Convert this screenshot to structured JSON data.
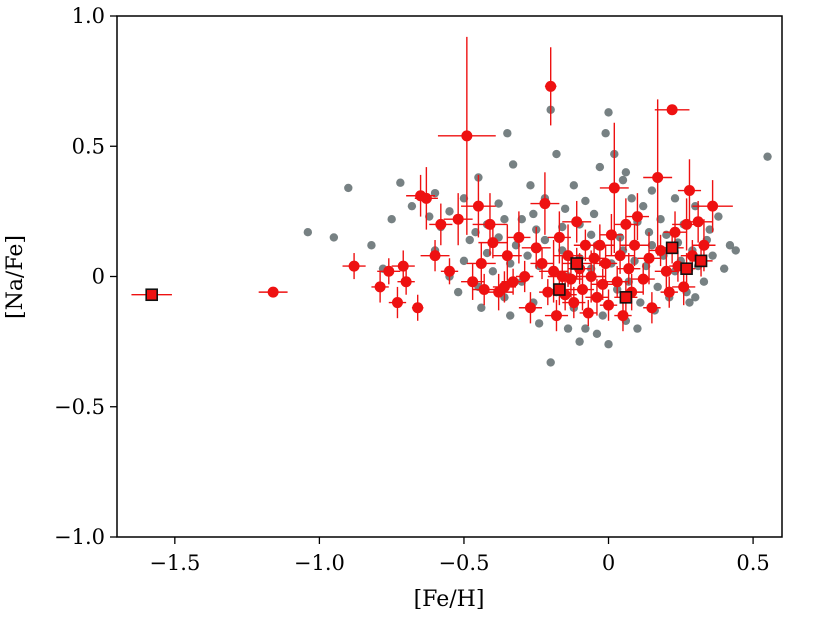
{
  "chart_data": {
    "type": "scatter",
    "xlabel": "[Fe/H]",
    "ylabel": "[Na/Fe]",
    "xlim": [
      -1.7,
      0.6
    ],
    "ylim": [
      -1.0,
      1.0
    ],
    "xticks": [
      {
        "value": -1.5,
        "label": "−1.5"
      },
      {
        "value": -1.0,
        "label": "−1.0"
      },
      {
        "value": -0.5,
        "label": "−0.5"
      },
      {
        "value": 0,
        "label": "0"
      },
      {
        "value": 0.5,
        "label": "0.5"
      }
    ],
    "yticks": [
      {
        "value": 1.0,
        "label": "1.0"
      },
      {
        "value": 0.5,
        "label": "0.5"
      },
      {
        "value": 0,
        "label": "0"
      },
      {
        "value": -0.5,
        "label": "−0.5"
      },
      {
        "value": -1.0,
        "label": "−1.0"
      }
    ],
    "grid": false,
    "colors": {
      "background_sample": "#5f6b6d",
      "highlight_sample": "#ee1111",
      "square_edge": "#111111"
    },
    "series": [
      {
        "marker": "circle",
        "color": "#5f6b6d",
        "points": [
          [
            0.55,
            0.46
          ],
          [
            -0.9,
            0.34
          ],
          [
            -1.04,
            0.17
          ],
          [
            -0.95,
            0.15
          ],
          [
            -0.78,
            0.03
          ],
          [
            -0.82,
            0.12
          ],
          [
            -0.72,
            0.36
          ],
          [
            -0.75,
            0.22
          ],
          [
            -0.68,
            0.27
          ],
          [
            -0.6,
            0.32
          ],
          [
            -0.55,
            0.25
          ],
          [
            -0.5,
            0.3
          ],
          [
            -0.45,
            0.38
          ],
          [
            -0.42,
            0.2
          ],
          [
            -0.38,
            0.28
          ],
          [
            -0.35,
            0.55
          ],
          [
            -0.33,
            0.43
          ],
          [
            -0.3,
            0.22
          ],
          [
            -0.27,
            0.35
          ],
          [
            -0.25,
            0.18
          ],
          [
            -0.22,
            0.3
          ],
          [
            -0.2,
            0.64
          ],
          [
            -0.18,
            0.47
          ],
          [
            -0.15,
            0.26
          ],
          [
            -0.12,
            0.35
          ],
          [
            -0.1,
            0.2
          ],
          [
            -0.08,
            0.29
          ],
          [
            -0.05,
            0.24
          ],
          [
            -0.03,
            0.42
          ],
          [
            0.0,
            0.63
          ],
          [
            0.02,
            0.47
          ],
          [
            0.05,
            0.37
          ],
          [
            0.08,
            0.3
          ],
          [
            0.1,
            0.21
          ],
          [
            0.12,
            0.27
          ],
          [
            0.15,
            0.33
          ],
          [
            0.18,
            0.22
          ],
          [
            0.2,
            0.16
          ],
          [
            0.23,
            0.3
          ],
          [
            0.26,
            0.2
          ],
          [
            0.3,
            0.27
          ],
          [
            0.35,
            0.18
          ],
          [
            0.38,
            0.23
          ],
          [
            0.42,
            0.12
          ],
          [
            0.44,
            0.1
          ],
          [
            -0.6,
            0.1
          ],
          [
            -0.55,
            0.0
          ],
          [
            -0.5,
            0.06
          ],
          [
            -0.48,
            0.14
          ],
          [
            -0.45,
            -0.04
          ],
          [
            -0.42,
            0.09
          ],
          [
            -0.4,
            0.02
          ],
          [
            -0.38,
            0.15
          ],
          [
            -0.36,
            -0.08
          ],
          [
            -0.34,
            0.05
          ],
          [
            -0.32,
            0.12
          ],
          [
            -0.3,
            -0.02
          ],
          [
            -0.28,
            0.08
          ],
          [
            -0.26,
            -0.1
          ],
          [
            -0.24,
            0.04
          ],
          [
            -0.22,
            0.14
          ],
          [
            -0.2,
            -0.33
          ],
          [
            -0.18,
            -0.06
          ],
          [
            -0.16,
            0.1
          ],
          [
            -0.14,
            0.0
          ],
          [
            -0.12,
            -0.12
          ],
          [
            -0.1,
            0.07
          ],
          [
            -0.08,
            -0.2
          ],
          [
            -0.06,
            0.03
          ],
          [
            -0.04,
            0.12
          ],
          [
            -0.02,
            -0.15
          ],
          [
            0.0,
            -0.26
          ],
          [
            0.01,
            0.05
          ],
          [
            0.03,
            -0.05
          ],
          [
            0.05,
            0.1
          ],
          [
            0.07,
            -0.02
          ],
          [
            0.09,
            0.06
          ],
          [
            0.11,
            -0.1
          ],
          [
            0.13,
            0.04
          ],
          [
            0.15,
            0.12
          ],
          [
            0.17,
            -0.04
          ],
          [
            0.19,
            0.08
          ],
          [
            0.21,
            -0.08
          ],
          [
            0.23,
            0.02
          ],
          [
            0.25,
            0.06
          ],
          [
            0.27,
            -0.06
          ],
          [
            0.29,
            0.1
          ],
          [
            0.31,
            0.04
          ],
          [
            0.33,
            -0.02
          ],
          [
            0.36,
            0.08
          ],
          [
            0.4,
            0.03
          ],
          [
            0.28,
            -0.1
          ],
          [
            0.3,
            -0.08
          ],
          [
            -0.46,
            0.17
          ],
          [
            -0.36,
            0.22
          ],
          [
            -0.26,
            0.24
          ],
          [
            -0.16,
            0.19
          ],
          [
            -0.06,
            0.16
          ],
          [
            0.04,
            0.15
          ],
          [
            0.14,
            0.17
          ],
          [
            0.24,
            0.13
          ],
          [
            0.34,
            0.14
          ],
          [
            -0.52,
            -0.06
          ],
          [
            -0.44,
            -0.12
          ],
          [
            -0.34,
            -0.15
          ],
          [
            -0.24,
            -0.18
          ],
          [
            -0.14,
            -0.2
          ],
          [
            -0.04,
            -0.22
          ],
          [
            0.06,
            -0.17
          ],
          [
            0.16,
            -0.13
          ],
          [
            -0.58,
            0.19
          ],
          [
            -0.62,
            0.23
          ],
          [
            -0.1,
            -0.25
          ],
          [
            0.1,
            -0.2
          ],
          [
            -0.01,
            0.55
          ],
          [
            0.06,
            0.4
          ]
        ]
      },
      {
        "marker": "circle",
        "color": "#ee1111",
        "points": [
          [
            -1.16,
            -0.06,
            0.05,
            0.01
          ],
          [
            -0.88,
            0.04,
            0.04,
            0.05
          ],
          [
            -0.79,
            -0.04,
            0.03,
            0.06
          ],
          [
            -0.76,
            0.02,
            0.04,
            0.05
          ],
          [
            -0.73,
            -0.1,
            0.03,
            0.06
          ],
          [
            -0.71,
            0.04,
            0.04,
            0.06
          ],
          [
            -0.7,
            -0.02,
            0.03,
            0.05
          ],
          [
            -0.66,
            -0.12,
            0.02,
            0.05
          ],
          [
            -0.65,
            0.31,
            0.05,
            0.08
          ],
          [
            -0.63,
            0.3,
            0.04,
            0.12
          ],
          [
            -0.6,
            0.08,
            0.05,
            0.06
          ],
          [
            -0.58,
            0.2,
            0.04,
            0.08
          ],
          [
            -0.55,
            0.02,
            0.03,
            0.05
          ],
          [
            -0.49,
            0.54,
            0.1,
            0.38
          ],
          [
            -0.45,
            0.27,
            0.06,
            0.12
          ],
          [
            -0.44,
            0.05,
            0.05,
            0.08
          ],
          [
            -0.43,
            -0.05,
            0.04,
            0.06
          ],
          [
            -0.4,
            0.13,
            0.05,
            0.06
          ],
          [
            -0.38,
            -0.06,
            0.05,
            0.07
          ],
          [
            -0.35,
            0.08,
            0.05,
            0.12
          ],
          [
            -0.33,
            -0.02,
            0.04,
            0.05
          ],
          [
            -0.31,
            0.15,
            0.04,
            0.1
          ],
          [
            -0.29,
            0.0,
            0.03,
            0.06
          ],
          [
            -0.27,
            -0.12,
            0.04,
            0.06
          ],
          [
            -0.25,
            0.11,
            0.05,
            0.08
          ],
          [
            -0.23,
            0.05,
            0.04,
            0.06
          ],
          [
            -0.21,
            -0.06,
            0.03,
            0.05
          ],
          [
            -0.2,
            0.73,
            0.02,
            0.15
          ],
          [
            -0.19,
            0.02,
            0.05,
            0.12
          ],
          [
            -0.18,
            -0.15,
            0.04,
            0.06
          ],
          [
            -0.17,
            0.15,
            0.04,
            0.1
          ],
          [
            -0.16,
            0.0,
            0.05,
            0.08
          ],
          [
            -0.15,
            -0.07,
            0.04,
            0.06
          ],
          [
            -0.14,
            0.08,
            0.05,
            0.12
          ],
          [
            -0.13,
            -0.01,
            0.04,
            0.07
          ],
          [
            -0.12,
            -0.1,
            0.04,
            0.06
          ],
          [
            -0.11,
            0.21,
            0.05,
            0.08
          ],
          [
            -0.1,
            0.03,
            0.04,
            0.06
          ],
          [
            -0.09,
            -0.05,
            0.04,
            0.08
          ],
          [
            -0.08,
            0.12,
            0.04,
            0.06
          ],
          [
            -0.07,
            -0.14,
            0.03,
            0.05
          ],
          [
            -0.06,
            0.0,
            0.05,
            0.1
          ],
          [
            -0.05,
            0.07,
            0.04,
            0.06
          ],
          [
            -0.04,
            -0.08,
            0.04,
            0.07
          ],
          [
            -0.03,
            0.12,
            0.05,
            0.08
          ],
          [
            -0.02,
            -0.03,
            0.04,
            0.06
          ],
          [
            -0.01,
            0.05,
            0.04,
            0.07
          ],
          [
            0.0,
            -0.11,
            0.03,
            0.06
          ],
          [
            0.01,
            0.16,
            0.04,
            0.08
          ],
          [
            0.02,
            0.34,
            0.05,
            0.25
          ],
          [
            0.03,
            -0.02,
            0.04,
            0.06
          ],
          [
            0.04,
            0.08,
            0.05,
            0.07
          ],
          [
            0.05,
            -0.15,
            0.03,
            0.06
          ],
          [
            0.06,
            0.2,
            0.04,
            0.1
          ],
          [
            0.07,
            0.03,
            0.04,
            0.06
          ],
          [
            0.08,
            -0.06,
            0.04,
            0.07
          ],
          [
            0.09,
            0.12,
            0.05,
            0.08
          ],
          [
            0.1,
            0.23,
            0.04,
            0.09
          ],
          [
            0.12,
            -0.01,
            0.04,
            0.06
          ],
          [
            0.14,
            0.07,
            0.04,
            0.1
          ],
          [
            0.15,
            -0.12,
            0.03,
            0.06
          ],
          [
            0.17,
            0.38,
            0.05,
            0.3
          ],
          [
            0.18,
            0.1,
            0.04,
            0.06
          ],
          [
            0.2,
            0.02,
            0.04,
            0.07
          ],
          [
            0.21,
            -0.06,
            0.03,
            0.06
          ],
          [
            0.22,
            0.64,
            0.06,
            0.02
          ],
          [
            0.23,
            0.17,
            0.04,
            0.08
          ],
          [
            0.24,
            0.04,
            0.03,
            0.06
          ],
          [
            0.26,
            -0.04,
            0.04,
            0.07
          ],
          [
            0.27,
            0.2,
            0.05,
            0.1
          ],
          [
            0.28,
            0.33,
            0.04,
            0.12
          ],
          [
            0.29,
            0.08,
            0.04,
            0.06
          ],
          [
            0.31,
            0.21,
            0.05,
            0.08
          ],
          [
            0.33,
            0.12,
            0.04,
            0.1
          ],
          [
            0.36,
            0.27,
            0.07,
            0.1
          ],
          [
            -0.52,
            0.22,
            0.05,
            0.1
          ],
          [
            -0.47,
            -0.02,
            0.04,
            0.07
          ],
          [
            -0.41,
            0.2,
            0.06,
            0.12
          ],
          [
            -0.36,
            -0.04,
            0.04,
            0.06
          ],
          [
            -0.22,
            0.28,
            0.05,
            0.12
          ]
        ]
      },
      {
        "marker": "square",
        "color": "#ee1111",
        "points": [
          [
            -1.58,
            -0.07,
            0.07,
            0.01
          ],
          [
            -0.17,
            -0.05,
            0.04,
            0.06
          ],
          [
            -0.11,
            0.05,
            0.05,
            0.06
          ],
          [
            0.06,
            -0.08,
            0.04,
            0.06
          ],
          [
            0.22,
            0.11,
            0.04,
            0.06
          ],
          [
            0.27,
            0.03,
            0.03,
            0.06
          ],
          [
            0.32,
            0.06,
            0.04,
            0.06
          ]
        ]
      }
    ]
  }
}
